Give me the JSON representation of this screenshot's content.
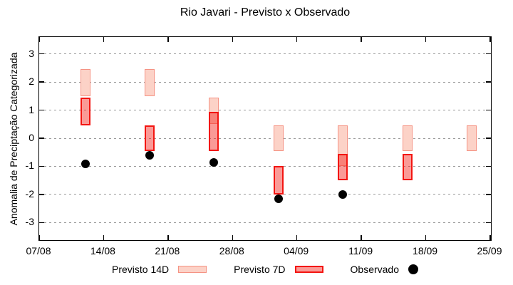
{
  "chart_data": {
    "type": "box",
    "title": "Rio Javari - Previsto x Observado",
    "xlabel": "",
    "ylabel": "Anomalia de Preciptação Categorizada",
    "ylim": [
      -3.6,
      3.6
    ],
    "yticks": [
      3,
      2,
      1,
      0,
      -1,
      -2,
      -3
    ],
    "grid": "horizontal-dotted",
    "legend_position": "below-plot",
    "x_axis": {
      "tick_labels": [
        "07/08",
        "14/08",
        "21/08",
        "28/08",
        "04/09",
        "11/09",
        "18/09",
        "25/09"
      ],
      "tick_days": [
        0,
        7,
        14,
        21,
        28,
        35,
        42,
        49
      ],
      "range_days": [
        0,
        49
      ]
    },
    "series": [
      {
        "name": "Previsto 14D",
        "type": "range-box",
        "style": "light"
      },
      {
        "name": "Previsto 7D",
        "type": "range-box",
        "style": "dark"
      },
      {
        "name": "Observado",
        "type": "dot",
        "style": "black"
      }
    ],
    "groups": [
      {
        "date": "12/08",
        "day": 5,
        "previsto_14d": [
          1.5,
          2.45
        ],
        "previsto_7d": [
          0.45,
          1.45
        ],
        "observado": -0.9
      },
      {
        "date": "19/08",
        "day": 12,
        "previsto_14d": [
          1.5,
          2.45
        ],
        "previsto_7d": [
          -0.45,
          0.45
        ],
        "observado": -0.6
      },
      {
        "date": "26/08",
        "day": 19,
        "previsto_14d": [
          0.5,
          1.45
        ],
        "previsto_7d": [
          -0.45,
          0.95
        ],
        "observado": -0.85
      },
      {
        "date": "02/09",
        "day": 26,
        "previsto_14d": [
          -0.45,
          0.45
        ],
        "previsto_7d": [
          -2.0,
          -1.0
        ],
        "observado": -2.15
      },
      {
        "date": "09/09",
        "day": 33,
        "previsto_14d": [
          -1.0,
          0.45
        ],
        "previsto_7d": [
          -1.5,
          -0.55
        ],
        "observado": -2.0
      },
      {
        "date": "16/09",
        "day": 40,
        "previsto_14d": [
          -0.45,
          0.45
        ],
        "previsto_7d": [
          -1.5,
          -0.55
        ],
        "observado": null
      },
      {
        "date": "23/09",
        "day": 47,
        "previsto_14d": [
          -0.45,
          0.45
        ],
        "previsto_7d": null,
        "observado": null
      }
    ],
    "colors": {
      "previsto_14d_fill": "#fcd2c7",
      "previsto_14d_border": "#f59384",
      "previsto_7d_fill": "rgba(244,32,24,0.45)",
      "previsto_7d_border": "#f31511",
      "observado": "#000000",
      "grid": "#9a9a9a",
      "axis": "#000000",
      "background": "#ffffff"
    }
  },
  "legend": {
    "items": [
      {
        "label": "Previsto 14D",
        "swatch": "light-box"
      },
      {
        "label": "Previsto 7D",
        "swatch": "dark-box"
      },
      {
        "label": "Observado",
        "swatch": "black-dot"
      }
    ]
  }
}
